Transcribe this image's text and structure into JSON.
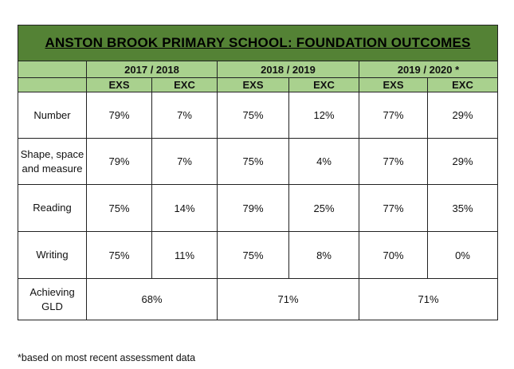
{
  "title": "ANSTON BROOK PRIMARY SCHOOL: FOUNDATION OUTCOMES",
  "years": [
    "2017 / 2018",
    "2018 / 2019",
    "2019 / 2020 *"
  ],
  "sub_headers": [
    "EXS",
    "EXC",
    "EXS",
    "EXC",
    "EXS",
    "EXC"
  ],
  "rows": [
    {
      "label": "Number",
      "values": [
        "79%",
        "7%",
        "75%",
        "12%",
        "77%",
        "29%"
      ]
    },
    {
      "label": "Shape, space and measure",
      "values": [
        "79%",
        "7%",
        "75%",
        "4%",
        "77%",
        "29%"
      ]
    },
    {
      "label": "Reading",
      "values": [
        "75%",
        "14%",
        "79%",
        "25%",
        "77%",
        "35%"
      ]
    },
    {
      "label": "Writing",
      "values": [
        "75%",
        "11%",
        "75%",
        "8%",
        "70%",
        "0%"
      ]
    }
  ],
  "gld": {
    "label": "Achieving GLD",
    "values": [
      "68%",
      "71%",
      "71%"
    ]
  },
  "footnote": "*based on most recent assessment data",
  "colors": {
    "title_bg": "#548235",
    "header_bg": "#a9d18e"
  }
}
